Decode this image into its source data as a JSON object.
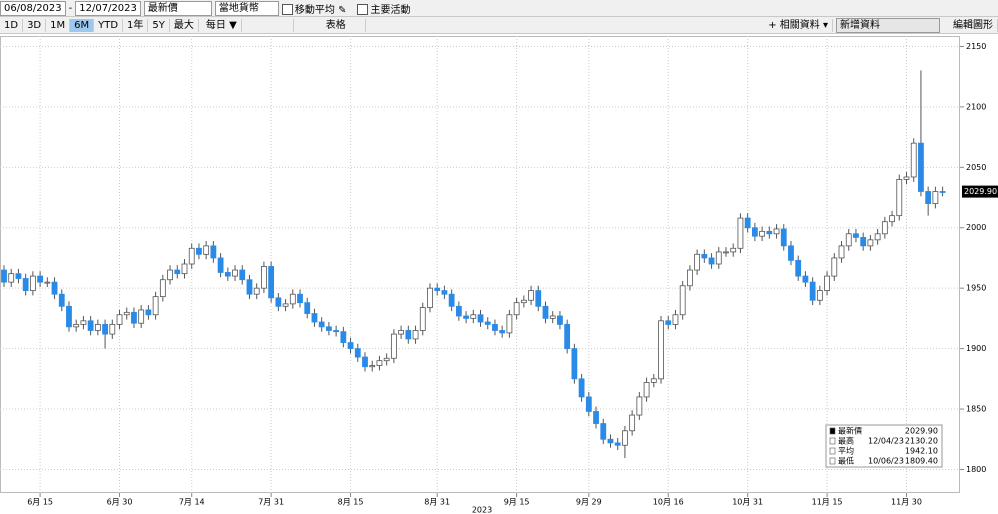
{
  "toolbar": {
    "start_date": "06/08/2023",
    "end_date": "12/07/2023",
    "price_field": "最新價",
    "currency": "當地貨幣",
    "moving_average": "移動平均",
    "events": "主要活動",
    "periods": [
      "1D",
      "3D",
      "1M",
      "6M",
      "YTD",
      "1年",
      "5Y",
      "最大"
    ],
    "active_period": "6M",
    "frequency": "每日 ▼",
    "table": "表格",
    "related": "+ 相關資料 ▾",
    "add_data": "新增資料",
    "edit": "編輯圖形"
  },
  "chart_data": {
    "type": "candlestick",
    "up_color": "#ffffff",
    "down_color": "#2a8ae8",
    "grid": true,
    "x": [
      "2023-06-08",
      "2023-06-09",
      "2023-06-12",
      "2023-06-13",
      "2023-06-14",
      "2023-06-15",
      "2023-06-16",
      "2023-06-19",
      "2023-06-20",
      "2023-06-21",
      "2023-06-22",
      "2023-06-23",
      "2023-06-26",
      "2023-06-27",
      "2023-06-28",
      "2023-06-29",
      "2023-06-30",
      "2023-07-03",
      "2023-07-04",
      "2023-07-05",
      "2023-07-06",
      "2023-07-07",
      "2023-07-10",
      "2023-07-11",
      "2023-07-12",
      "2023-07-13",
      "2023-07-14",
      "2023-07-17",
      "2023-07-18",
      "2023-07-19",
      "2023-07-20",
      "2023-07-21",
      "2023-07-24",
      "2023-07-25",
      "2023-07-26",
      "2023-07-27",
      "2023-07-28",
      "2023-07-31",
      "2023-08-01",
      "2023-08-02",
      "2023-08-03",
      "2023-08-04",
      "2023-08-07",
      "2023-08-08",
      "2023-08-09",
      "2023-08-10",
      "2023-08-11",
      "2023-08-14",
      "2023-08-15",
      "2023-08-16",
      "2023-08-17",
      "2023-08-18",
      "2023-08-21",
      "2023-08-22",
      "2023-08-23",
      "2023-08-24",
      "2023-08-25",
      "2023-08-28",
      "2023-08-29",
      "2023-08-30",
      "2023-08-31",
      "2023-09-01",
      "2023-09-04",
      "2023-09-05",
      "2023-09-06",
      "2023-09-07",
      "2023-09-08",
      "2023-09-11",
      "2023-09-12",
      "2023-09-13",
      "2023-09-14",
      "2023-09-15",
      "2023-09-18",
      "2023-09-19",
      "2023-09-20",
      "2023-09-21",
      "2023-09-22",
      "2023-09-25",
      "2023-09-26",
      "2023-09-27",
      "2023-09-28",
      "2023-09-29",
      "2023-10-02",
      "2023-10-03",
      "2023-10-04",
      "2023-10-05",
      "2023-10-06",
      "2023-10-09",
      "2023-10-10",
      "2023-10-11",
      "2023-10-12",
      "2023-10-13",
      "2023-10-16",
      "2023-10-17",
      "2023-10-18",
      "2023-10-19",
      "2023-10-20",
      "2023-10-23",
      "2023-10-24",
      "2023-10-25",
      "2023-10-26",
      "2023-10-27",
      "2023-10-30",
      "2023-10-31",
      "2023-11-01",
      "2023-11-02",
      "2023-11-03",
      "2023-11-06",
      "2023-11-07",
      "2023-11-08",
      "2023-11-09",
      "2023-11-10",
      "2023-11-13",
      "2023-11-14",
      "2023-11-15",
      "2023-11-16",
      "2023-11-17",
      "2023-11-20",
      "2023-11-21",
      "2023-11-22",
      "2023-11-23",
      "2023-11-24",
      "2023-11-27",
      "2023-11-28",
      "2023-11-29",
      "2023-11-30",
      "2023-12-01",
      "2023-12-04",
      "2023-12-05",
      "2023-12-06",
      "2023-12-07"
    ],
    "open": [
      1965,
      1955,
      1962,
      1958,
      1948,
      1960,
      1955,
      1955,
      1945,
      1935,
      1918,
      1920,
      1923,
      1915,
      1920,
      1912,
      1920,
      1928,
      1930,
      1921,
      1932,
      1928,
      1943,
      1957,
      1965,
      1962,
      1970,
      1983,
      1978,
      1985,
      1975,
      1963,
      1960,
      1965,
      1957,
      1945,
      1950,
      1968,
      1942,
      1935,
      1937,
      1945,
      1938,
      1929,
      1922,
      1918,
      1915,
      1914,
      1905,
      1900,
      1893,
      1885,
      1886,
      1890,
      1892,
      1912,
      1915,
      1908,
      1915,
      1934,
      1950,
      1948,
      1945,
      1935,
      1927,
      1925,
      1928,
      1922,
      1920,
      1915,
      1913,
      1928,
      1938,
      1940,
      1948,
      1935,
      1925,
      1927,
      1920,
      1900,
      1875,
      1860,
      1848,
      1838,
      1825,
      1822,
      1820,
      1832,
      1845,
      1860,
      1872,
      1875,
      1923,
      1920,
      1928,
      1952,
      1965,
      1978,
      1975,
      1970,
      1980,
      1980,
      1983,
      2008,
      2000,
      1993,
      1997,
      1995,
      1999,
      1985,
      1973,
      1960,
      1955,
      1940,
      1948,
      1960,
      1975,
      1985,
      1995,
      1992,
      1985,
      1990,
      1995,
      2005,
      2010,
      2040,
      2042,
      2070,
      2030,
      2020,
      2030
    ],
    "high": [
      1969,
      1966,
      1966,
      1962,
      1964,
      1964,
      1959,
      1959,
      1949,
      1939,
      1924,
      1927,
      1927,
      1924,
      1924,
      1924,
      1932,
      1934,
      1934,
      1936,
      1936,
      1947,
      1961,
      1969,
      1969,
      1974,
      1987,
      1987,
      1989,
      1989,
      1979,
      1967,
      1969,
      1969,
      1961,
      1954,
      1972,
      1972,
      1946,
      1941,
      1949,
      1949,
      1942,
      1933,
      1926,
      1922,
      1919,
      1918,
      1909,
      1904,
      1897,
      1890,
      1894,
      1896,
      1916,
      1919,
      1919,
      1919,
      1938,
      1954,
      1954,
      1952,
      1949,
      1939,
      1931,
      1932,
      1932,
      1926,
      1924,
      1919,
      1932,
      1942,
      1944,
      1952,
      1952,
      1939,
      1931,
      1931,
      1924,
      1904,
      1879,
      1864,
      1852,
      1842,
      1829,
      1826,
      1836,
      1849,
      1864,
      1876,
      1879,
      1927,
      1927,
      1932,
      1956,
      1969,
      1982,
      1982,
      1979,
      1984,
      1984,
      1987,
      2012,
      2012,
      2004,
      2001,
      2001,
      2003,
      2003,
      1989,
      1977,
      1964,
      1959,
      1952,
      1964,
      1979,
      1989,
      1999,
      1999,
      1996,
      1994,
      1999,
      2009,
      2014,
      2044,
      2046,
      2074,
      2130.2,
      2034,
      2034,
      2034
    ],
    "low": [
      1951,
      1951,
      1954,
      1944,
      1944,
      1951,
      1951,
      1941,
      1931,
      1914,
      1914,
      1916,
      1911,
      1911,
      1900,
      1908,
      1916,
      1924,
      1917,
      1917,
      1924,
      1924,
      1939,
      1953,
      1958,
      1958,
      1966,
      1974,
      1974,
      1971,
      1959,
      1956,
      1956,
      1953,
      1941,
      1941,
      1946,
      1938,
      1931,
      1931,
      1933,
      1934,
      1925,
      1918,
      1914,
      1911,
      1910,
      1901,
      1896,
      1889,
      1881,
      1881,
      1882,
      1886,
      1888,
      1908,
      1904,
      1904,
      1911,
      1930,
      1944,
      1941,
      1931,
      1923,
      1921,
      1921,
      1918,
      1916,
      1911,
      1909,
      1909,
      1924,
      1934,
      1936,
      1931,
      1921,
      1921,
      1916,
      1896,
      1871,
      1856,
      1844,
      1834,
      1821,
      1818,
      1816,
      1809.4,
      1828,
      1841,
      1856,
      1868,
      1871,
      1916,
      1916,
      1924,
      1948,
      1961,
      1971,
      1966,
      1966,
      1976,
      1976,
      1979,
      1996,
      1989,
      1989,
      1991,
      1991,
      1981,
      1969,
      1956,
      1951,
      1936,
      1936,
      1944,
      1956,
      1971,
      1981,
      1988,
      1981,
      1981,
      1986,
      1991,
      2001,
      2006,
      2036,
      2038,
      2026,
      2010,
      2016,
      2026
    ],
    "close": [
      1955,
      1962,
      1958,
      1948,
      1960,
      1955,
      1955,
      1945,
      1935,
      1918,
      1920,
      1923,
      1915,
      1920,
      1912,
      1920,
      1928,
      1930,
      1921,
      1932,
      1928,
      1943,
      1957,
      1965,
      1962,
      1970,
      1983,
      1978,
      1985,
      1975,
      1963,
      1960,
      1965,
      1957,
      1945,
      1950,
      1968,
      1942,
      1935,
      1937,
      1945,
      1938,
      1929,
      1922,
      1918,
      1915,
      1914,
      1905,
      1900,
      1893,
      1885,
      1886,
      1890,
      1892,
      1912,
      1915,
      1908,
      1915,
      1934,
      1950,
      1948,
      1945,
      1935,
      1927,
      1925,
      1928,
      1922,
      1920,
      1915,
      1913,
      1928,
      1938,
      1940,
      1948,
      1935,
      1925,
      1927,
      1920,
      1900,
      1875,
      1860,
      1848,
      1838,
      1825,
      1822,
      1820,
      1832,
      1845,
      1860,
      1872,
      1875,
      1923,
      1920,
      1928,
      1952,
      1965,
      1978,
      1975,
      1970,
      1980,
      1980,
      1983,
      2008,
      2000,
      1993,
      1997,
      1995,
      1999,
      1985,
      1973,
      1960,
      1955,
      1940,
      1948,
      1960,
      1975,
      1985,
      1995,
      1992,
      1985,
      1990,
      1995,
      2005,
      2010,
      2040,
      2042,
      2070,
      2030,
      2020,
      2030,
      2029.9
    ],
    "ylim": [
      1783,
      2157
    ],
    "yticks": [
      1800,
      1850,
      1900,
      1950,
      2000,
      2050,
      2100,
      2150
    ],
    "xticks": [
      {
        "value": "2023-06-15",
        "label": "6月 15"
      },
      {
        "value": "2023-06-30",
        "label": "6月 30"
      },
      {
        "value": "2023-07-14",
        "label": "7月 14"
      },
      {
        "value": "2023-07-31",
        "label": "7月 31"
      },
      {
        "value": "2023-08-15",
        "label": "8月 15"
      },
      {
        "value": "2023-08-31",
        "label": "8月 31"
      },
      {
        "value": "2023-09-15",
        "label": "9月 15"
      },
      {
        "value": "2023-09-29",
        "label": "9月 29"
      },
      {
        "value": "2023-10-16",
        "label": "10月 16"
      },
      {
        "value": "2023-10-31",
        "label": "10月 31"
      },
      {
        "value": "2023-11-15",
        "label": "11月 15"
      },
      {
        "value": "2023-11-30",
        "label": "11月 30"
      }
    ],
    "x_year_label": "2023",
    "last_tag": {
      "value": 2029.9,
      "label": "2029.90"
    },
    "legend": [
      {
        "name": "最新價",
        "date": "",
        "value": "2029.90"
      },
      {
        "name": "最高",
        "date": "12/04/23",
        "value": "2130.20"
      },
      {
        "name": "平均",
        "date": "",
        "value": "1942.10"
      },
      {
        "name": "最低",
        "date": "10/06/23",
        "value": "1809.40"
      }
    ]
  }
}
